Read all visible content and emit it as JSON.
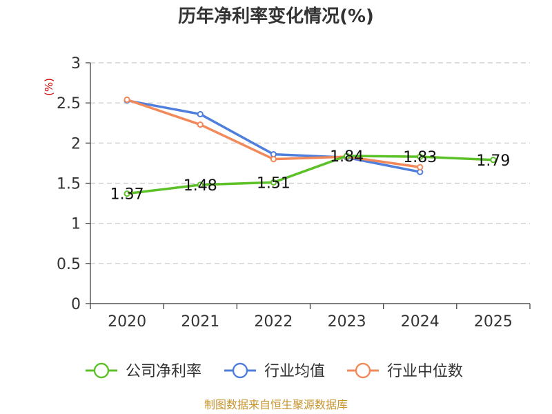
{
  "chart_data": {
    "type": "line",
    "title": "历年净利率变化情况(%)",
    "ylabel": "(%)",
    "xlabel": "",
    "categories": [
      "2020",
      "2021",
      "2022",
      "2023",
      "2024",
      "2025"
    ],
    "ylim": [
      0,
      3
    ],
    "yticks": [
      0,
      0.5,
      1,
      1.5,
      2,
      2.5,
      3
    ],
    "ytick_labels": [
      "0",
      "0.5",
      "1",
      "1.5",
      "2",
      "2.5",
      "3"
    ],
    "grid": true,
    "legend_position": "bottom",
    "series": [
      {
        "name": "公司净利率",
        "color": "#5cc126",
        "values": [
          1.37,
          1.48,
          1.51,
          1.84,
          1.83,
          1.79
        ],
        "labels": [
          "1.37",
          "1.48",
          "1.51",
          "1.84",
          "1.83",
          "1.79"
        ]
      },
      {
        "name": "行业均值",
        "color": "#4f7fdd",
        "values": [
          2.53,
          2.36,
          1.86,
          1.82,
          1.64,
          null
        ]
      },
      {
        "name": "行业中位数",
        "color": "#f2895a",
        "values": [
          2.54,
          2.23,
          1.8,
          1.83,
          1.7,
          null
        ]
      }
    ]
  },
  "footer": {
    "source": "制图数据来自恒生聚源数据库"
  }
}
